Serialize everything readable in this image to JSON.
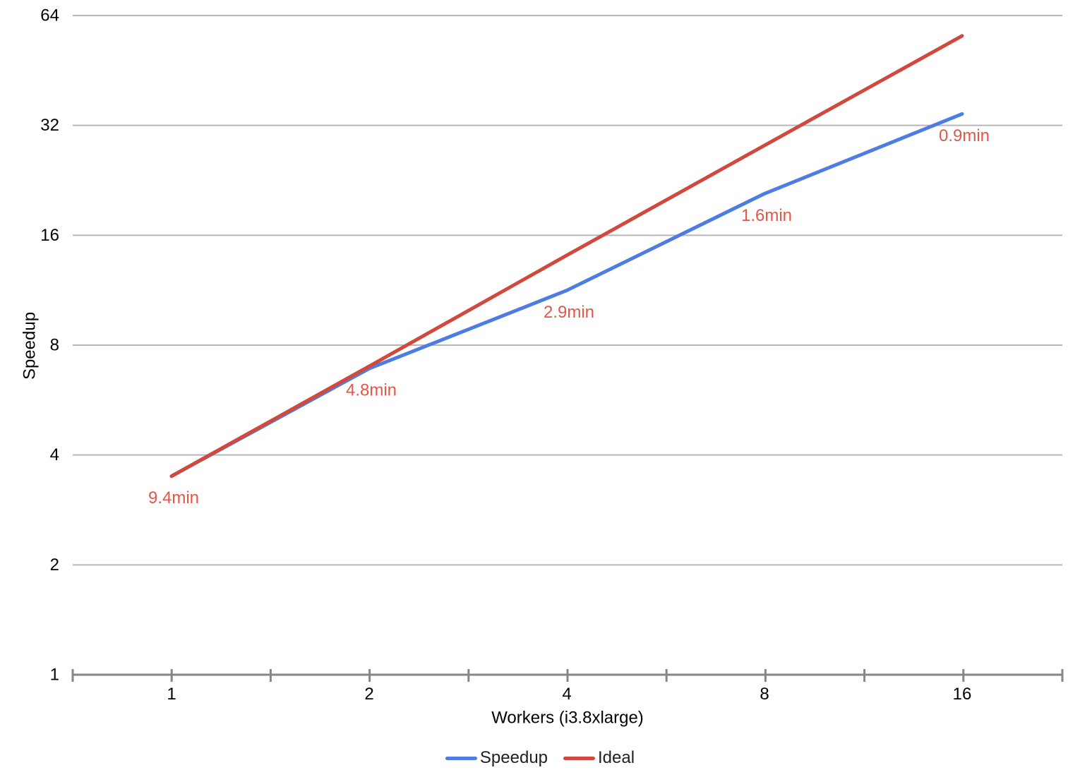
{
  "chart_data": {
    "type": "line",
    "title": "",
    "xlabel": "Workers (i3.8xlarge)",
    "ylabel": "Speedup",
    "x_scale": "log2",
    "y_scale": "log2",
    "xlim": [
      0.707,
      22.6
    ],
    "ylim": [
      1,
      64
    ],
    "grid": "horizontal-only",
    "legend_position": "bottom",
    "x": [
      1,
      2,
      4,
      8,
      16
    ],
    "series": [
      {
        "name": "Speedup",
        "color": "#4d7de2",
        "values": [
          3.5,
          6.9,
          11.3,
          20.8,
          34.4
        ]
      },
      {
        "name": "Ideal",
        "color": "#d0493d",
        "values": [
          3.5,
          7.0,
          14.1,
          28.2,
          56.3
        ]
      }
    ],
    "annotations": {
      "attached_to_series": "Speedup",
      "labels": [
        "9.4min",
        "4.8min",
        "2.9min",
        "1.6min",
        "0.9min"
      ],
      "color": "#e0584a"
    },
    "y_ticks": [
      1,
      2,
      4,
      8,
      16,
      32,
      64
    ],
    "x_ticks_labeled": [
      1,
      2,
      4,
      8,
      16
    ],
    "colors": {
      "gridline": "#b7b7b7",
      "axis": "#878787",
      "tick_text": "#000000"
    }
  }
}
